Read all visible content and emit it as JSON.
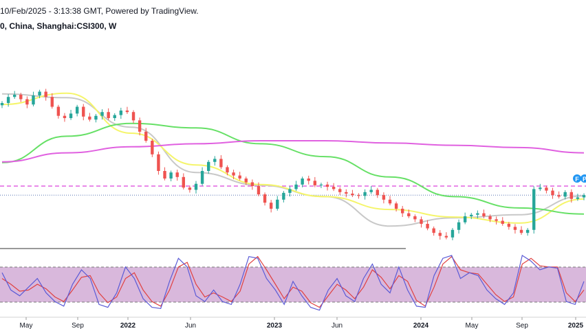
{
  "header": {
    "timestamp_line": "10/Feb/2025 - 3:13:38 GMT, Powered by TradingView.",
    "symbol_line": "0, China, Shanghai:CSI300, W"
  },
  "colors": {
    "up": "#26a69a",
    "down": "#ef5350",
    "ma_fast": "#c8c8c8",
    "ma_mid": "#f5f56a",
    "ma_slow": "#66e066",
    "ma_long": "#e060e0",
    "stoch_k": "#5b5bd6",
    "stoch_d": "#e04040",
    "stoch_band": "#d9b8dc"
  },
  "markers": {
    "flag1": "F",
    "flag2": "P"
  },
  "chart_data": {
    "type": "candlestick",
    "x_tick_labels": [
      "May",
      "Sep",
      "2022",
      "Jun",
      "2023",
      "Jun",
      "2024",
      "May",
      "Sep",
      "2025"
    ],
    "bold_ticks": [
      "2022",
      "2023",
      "2024",
      "2025"
    ],
    "price_series": [
      5100,
      5180,
      5210,
      5150,
      5080,
      5200,
      5250,
      5180,
      5050,
      4930,
      4900,
      4960,
      5050,
      4920,
      4880,
      4930,
      4980,
      4900,
      4940,
      5000,
      4980,
      4870,
      4720,
      4600,
      4420,
      4200,
      4100,
      4180,
      4120,
      3980,
      3950,
      4030,
      4200,
      4320,
      4360,
      4250,
      4180,
      4140,
      4100,
      4050,
      4000,
      3890,
      3780,
      3700,
      3820,
      3910,
      3960,
      4020,
      4100,
      4070,
      4010,
      4020,
      3990,
      3960,
      3920,
      3900,
      3880,
      3870,
      3920,
      3950,
      3880,
      3820,
      3770,
      3700,
      3640,
      3600,
      3560,
      3500,
      3440,
      3380,
      3340,
      3320,
      3420,
      3520,
      3600,
      3620,
      3640,
      3600,
      3560,
      3540,
      3500,
      3460,
      3420,
      3380,
      3420,
      3960,
      3980,
      3940,
      3880,
      3860,
      3920,
      3830,
      3850,
      3880
    ],
    "moving_averages": [
      {
        "name": "",
        "color": "#c8c8c8",
        "values": [
          5220,
          5170,
          4780,
          4180,
          4010,
          3860,
          3470,
          3580,
          3620,
          3870
        ]
      },
      {
        "name": "",
        "color": "#f5f56a",
        "values": [
          5080,
          5230,
          4700,
          4280,
          4020,
          3860,
          3690,
          3590,
          3510,
          3830
        ]
      },
      {
        "name": "",
        "color": "#66e066",
        "values": [
          4310,
          4660,
          4830,
          4770,
          4560,
          4390,
          4120,
          3860,
          3710,
          3630
        ]
      },
      {
        "name": "",
        "color": "#e060e0",
        "values": [
          4320,
          4440,
          4520,
          4560,
          4600,
          4600,
          4570,
          4540,
          4510,
          4440
        ]
      }
    ],
    "reference_lines": [
      {
        "style": "dashed",
        "color": "#e060e0",
        "value": 4000
      },
      {
        "style": "dotted",
        "color": "#3d5fa8",
        "value": 3880
      }
    ],
    "oscillator": {
      "type": "stochastic",
      "band_upper": 80,
      "band_lower": 20,
      "k_values": [
        70,
        40,
        30,
        45,
        60,
        35,
        20,
        12,
        50,
        75,
        60,
        15,
        10,
        35,
        80,
        60,
        25,
        10,
        8,
        55,
        95,
        80,
        30,
        20,
        40,
        20,
        15,
        50,
        98,
        95,
        60,
        40,
        15,
        55,
        30,
        10,
        5,
        40,
        60,
        30,
        20,
        60,
        85,
        50,
        35,
        80,
        40,
        12,
        10,
        65,
        95,
        100,
        60,
        70,
        65,
        40,
        25,
        15,
        35,
        100,
        90,
        75,
        80,
        78,
        20,
        15,
        55
      ],
      "d_values": [
        60,
        50,
        38,
        40,
        50,
        42,
        28,
        20,
        40,
        62,
        65,
        35,
        18,
        28,
        60,
        70,
        40,
        20,
        12,
        40,
        80,
        88,
        50,
        28,
        35,
        28,
        20,
        38,
        85,
        98,
        75,
        50,
        25,
        45,
        38,
        18,
        10,
        30,
        50,
        40,
        25,
        45,
        75,
        62,
        42,
        65,
        55,
        22,
        12,
        45,
        85,
        98,
        75,
        70,
        68,
        50,
        32,
        20,
        28,
        85,
        95,
        82,
        80,
        80,
        35,
        20,
        40
      ]
    }
  }
}
